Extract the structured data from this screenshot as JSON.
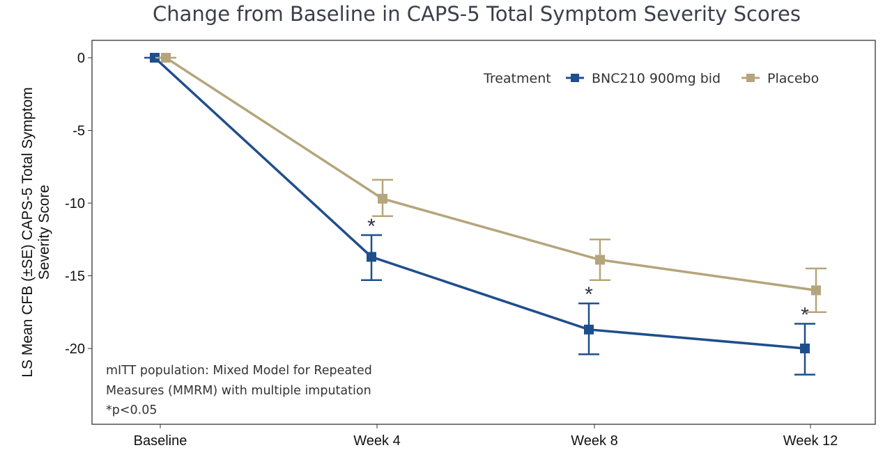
{
  "chart_data": {
    "type": "line",
    "title": "Change from Baseline in CAPS-5 Total Symptom Severity Scores",
    "ylabel_lines": [
      "LS Mean CFB (±SE) CAPS-5 Total Symptom",
      "Severity Score"
    ],
    "xlabel": "",
    "categories": [
      "Baseline",
      "Week 4",
      "Week 8",
      "Week 12"
    ],
    "yticks": [
      0,
      -5,
      -10,
      -15,
      -20
    ],
    "ylim": [
      -25,
      1.2
    ],
    "grid": false,
    "legend": {
      "title": "Treatment",
      "placement": "top-right"
    },
    "series": [
      {
        "name": "BNC210 900mg bid",
        "color": "#1f4e8c",
        "values": [
          0,
          -13.7,
          -18.7,
          -20.0
        ],
        "se_low": [
          0,
          -15.3,
          -20.4,
          -21.8
        ],
        "se_high": [
          0,
          -12.2,
          -16.9,
          -18.3
        ],
        "significance": [
          "",
          "*",
          "*",
          "*"
        ]
      },
      {
        "name": "Placebo",
        "color": "#b5a57c",
        "values": [
          0,
          -9.7,
          -13.9,
          -16.0
        ],
        "se_low": [
          0,
          -10.9,
          -15.3,
          -17.5
        ],
        "se_high": [
          0,
          -8.4,
          -12.5,
          -14.5
        ]
      }
    ],
    "annotation_lines": [
      "mITT population: Mixed Model for Repeated",
      "Measures (MMRM) with multiple imputation",
      "*p<0.05"
    ]
  }
}
